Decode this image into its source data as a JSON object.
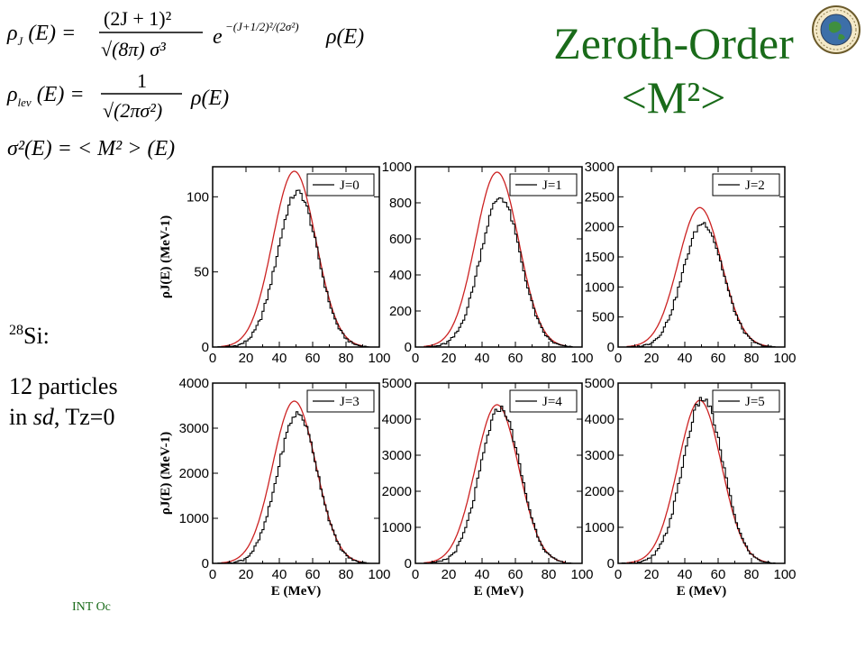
{
  "formulas": {
    "rho_j": {
      "lhs": "ρ_J(E) =",
      "num": "(2J + 1)²",
      "den": "√(8π) σ³",
      "exp_factor": "e^{−(J+1/2)²/(2σ²)}",
      "rho": "ρ(E)"
    },
    "rho_lev": {
      "lhs": "ρ_lev(E) =",
      "num": "1",
      "den": "√(2πσ²)",
      "rho": "ρ(E)"
    },
    "sigma": {
      "text": "σ²(E) = < M² > (E)"
    }
  },
  "slide": {
    "title_line1": "Zeroth-Order",
    "title_line2": "<M²>",
    "nucleus_mass": "28",
    "nucleus_symbol": "Si:",
    "particles_line1": "12 particles",
    "particles_in": "in ",
    "particles_sd": "sd",
    "particles_tz": ", Tz=0",
    "footer": "INT  Oc"
  },
  "colors": {
    "title": "#1a6b1a",
    "model": "#cc2222",
    "histogram": "#000000"
  },
  "icons": {
    "logo": "nsf-logo-icon"
  },
  "chart_data": [
    {
      "type": "line",
      "title": "J=0",
      "legend": "J=0",
      "legend_position": "top-right",
      "xlabel": "",
      "ylabel": "ρJ(E) (MeV-1)",
      "xlim": [
        0,
        100
      ],
      "ylim": [
        0,
        120
      ],
      "xticks": [
        0,
        20,
        40,
        60,
        80,
        100
      ],
      "yticks": [
        0,
        50,
        100
      ],
      "model_peak": 117,
      "hist_peak": 103,
      "mean": 49,
      "width": 13
    },
    {
      "type": "line",
      "title": "J=1",
      "legend": "J=1",
      "legend_position": "top-right",
      "xlabel": "",
      "ylabel": "",
      "xlim": [
        0,
        100
      ],
      "ylim": [
        0,
        1000
      ],
      "xticks": [
        0,
        20,
        40,
        60,
        80,
        100
      ],
      "yticks": [
        0,
        200,
        400,
        600,
        800,
        1000
      ],
      "model_peak": 970,
      "hist_peak": 830,
      "mean": 49,
      "width": 13
    },
    {
      "type": "line",
      "title": "J=2",
      "legend": "J=2",
      "legend_position": "top-right",
      "xlabel": "",
      "ylabel": "",
      "xlim": [
        0,
        100
      ],
      "ylim": [
        0,
        3000
      ],
      "xticks": [
        0,
        20,
        40,
        60,
        80,
        100
      ],
      "yticks": [
        0,
        500,
        1000,
        1500,
        2000,
        2500,
        3000
      ],
      "model_peak": 2320,
      "hist_peak": 2060,
      "mean": 49,
      "width": 13
    },
    {
      "type": "line",
      "title": "J=3",
      "legend": "J=3",
      "legend_position": "top-right",
      "xlabel": "E (MeV)",
      "ylabel": "ρJ(E) (MeV-1)",
      "xlim": [
        0,
        100
      ],
      "ylim": [
        0,
        4000
      ],
      "xticks": [
        0,
        20,
        40,
        60,
        80,
        100
      ],
      "yticks": [
        0,
        1000,
        2000,
        3000,
        4000
      ],
      "model_peak": 3600,
      "hist_peak": 3320,
      "mean": 49,
      "width": 13
    },
    {
      "type": "line",
      "title": "J=4",
      "legend": "J=4",
      "legend_position": "top-right",
      "xlabel": "E (MeV)",
      "ylabel": "",
      "xlim": [
        0,
        100
      ],
      "ylim": [
        0,
        5000
      ],
      "xticks": [
        0,
        20,
        40,
        60,
        80,
        100
      ],
      "yticks": [
        0,
        1000,
        2000,
        3000,
        4000,
        5000
      ],
      "model_peak": 4400,
      "hist_peak": 4300,
      "mean": 49,
      "width": 13
    },
    {
      "type": "line",
      "title": "J=5",
      "legend": "J=5",
      "legend_position": "top-right",
      "xlabel": "E (MeV)",
      "ylabel": "",
      "xlim": [
        0,
        100
      ],
      "ylim": [
        0,
        5000
      ],
      "xticks": [
        0,
        20,
        40,
        60,
        80,
        100
      ],
      "yticks": [
        0,
        1000,
        2000,
        3000,
        4000,
        5000
      ],
      "model_peak": 4520,
      "hist_peak": 4560,
      "mean": 49,
      "width": 13
    }
  ]
}
